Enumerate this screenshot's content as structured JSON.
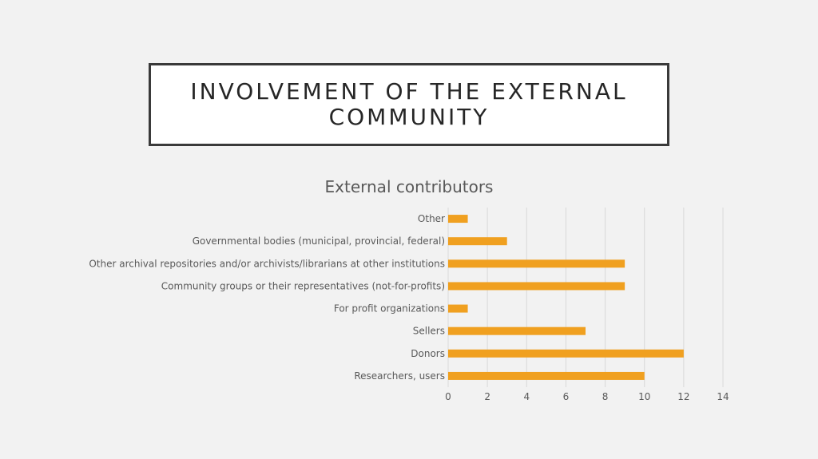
{
  "slide": {
    "title": "INVOLVEMENT OF THE EXTERNAL COMMUNITY"
  },
  "chart_data": {
    "type": "bar",
    "orientation": "horizontal",
    "title": "External contributors",
    "categories": [
      "Other",
      "Governmental bodies (municipal, provincial, federal)",
      "Other archival repositories and/or archivists/librarians at other institutions",
      "Community groups or their representatives (not-for-profits)",
      "For profit organizations",
      "Sellers",
      "Donors",
      "Researchers, users"
    ],
    "values": [
      1,
      3,
      9,
      9,
      1,
      7,
      12,
      10
    ],
    "xlim": [
      0,
      14
    ],
    "xticks": [
      0,
      2,
      4,
      6,
      8,
      10,
      12,
      14
    ],
    "grid": true,
    "legend": "none",
    "bar_color": "#f0a020",
    "grid_color": "#d9d9d9"
  }
}
